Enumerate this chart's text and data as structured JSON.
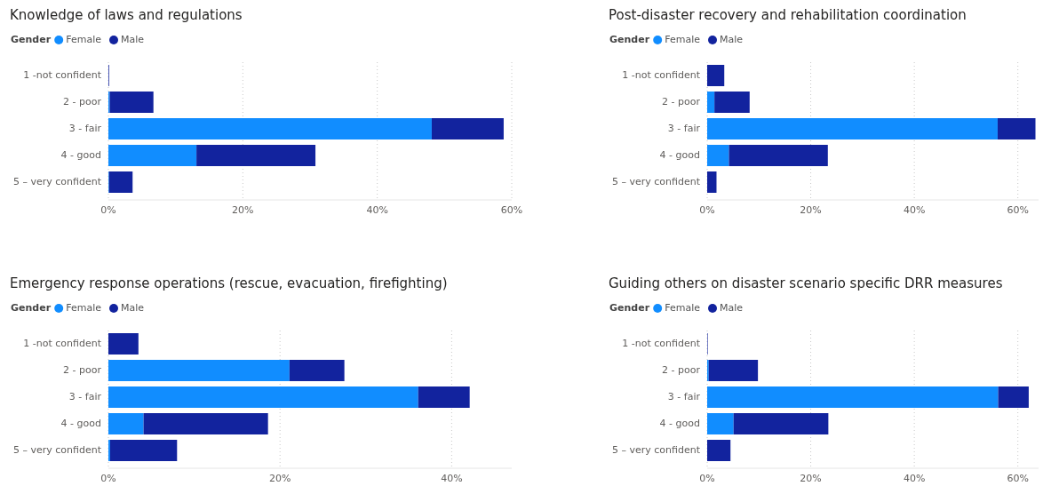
{
  "chart_data": [
    {
      "type": "bar",
      "title": "Knowledge of laws and regulations",
      "orientation": "horizontal",
      "stacked": true,
      "legend_title": "Gender",
      "legend": "top left",
      "grid": "x",
      "categories": [
        "1 -not confident",
        "2 - poor",
        "3 - fair",
        "4 - good",
        "5 – very confident"
      ],
      "xlim": [
        0,
        60
      ],
      "xticks": [
        {
          "value": 0,
          "label": "0%"
        },
        {
          "value": 20,
          "label": "20%"
        },
        {
          "value": 40,
          "label": "40%"
        },
        {
          "value": 60,
          "label": "60%"
        }
      ],
      "series": [
        {
          "name": "Female",
          "color": "#118dff",
          "values": [
            0,
            0.2,
            48.1,
            13.1,
            0.1
          ]
        },
        {
          "name": "Male",
          "color": "#12239e",
          "values": [
            0.1,
            6.5,
            10.7,
            17.7,
            3.5
          ]
        }
      ]
    },
    {
      "type": "bar",
      "title": "Post-disaster recovery and rehabilitation coordination",
      "orientation": "horizontal",
      "stacked": true,
      "legend_title": "Gender",
      "legend": "top left",
      "grid": "x",
      "categories": [
        "1 -not confident",
        "2 - poor",
        "3 - fair",
        "4 - good",
        "5 – very confident"
      ],
      "xlim": [
        0,
        64
      ],
      "xticks": [
        {
          "value": 0,
          "label": "0%"
        },
        {
          "value": 20,
          "label": "20%"
        },
        {
          "value": 40,
          "label": "40%"
        },
        {
          "value": 60,
          "label": "60%"
        }
      ],
      "series": [
        {
          "name": "Female",
          "color": "#118dff",
          "values": [
            0,
            1.4,
            56.1,
            4.2,
            0
          ]
        },
        {
          "name": "Male",
          "color": "#12239e",
          "values": [
            3.3,
            6.8,
            7.3,
            19.1,
            1.8
          ]
        }
      ]
    },
    {
      "type": "bar",
      "title": "Emergency response operations (rescue, evacuation, firefighting)",
      "orientation": "horizontal",
      "stacked": true,
      "legend_title": "Gender",
      "legend": "top left",
      "grid": "x",
      "categories": [
        "1 -not confident",
        "2 - poor",
        "3 - fair",
        "4 - good",
        "5 – very confident"
      ],
      "xlim": [
        0,
        47
      ],
      "xticks": [
        {
          "value": 0,
          "label": "0%"
        },
        {
          "value": 20,
          "label": "20%"
        },
        {
          "value": 40,
          "label": "40%"
        }
      ],
      "series": [
        {
          "name": "Female",
          "color": "#118dff",
          "values": [
            0,
            21.1,
            36.1,
            4.1,
            0.2
          ]
        },
        {
          "name": "Male",
          "color": "#12239e",
          "values": [
            3.5,
            6.4,
            6.0,
            14.5,
            7.8
          ]
        }
      ]
    },
    {
      "type": "bar",
      "title": "Guiding others on disaster scenario specific DRR measures",
      "orientation": "horizontal",
      "stacked": true,
      "legend_title": "Gender",
      "legend": "top left",
      "grid": "x",
      "categories": [
        "1 -not confident",
        "2 - poor",
        "3 - fair",
        "4 - good",
        "5 – very confident"
      ],
      "xlim": [
        0,
        64
      ],
      "xticks": [
        {
          "value": 0,
          "label": "0%"
        },
        {
          "value": 20,
          "label": "20%"
        },
        {
          "value": 40,
          "label": "40%"
        },
        {
          "value": 60,
          "label": "60%"
        }
      ],
      "series": [
        {
          "name": "Female",
          "color": "#118dff",
          "values": [
            0,
            0.3,
            56.2,
            5.1,
            0
          ]
        },
        {
          "name": "Male",
          "color": "#12239e",
          "values": [
            0.1,
            9.5,
            5.9,
            18.3,
            4.5
          ]
        }
      ]
    }
  ]
}
